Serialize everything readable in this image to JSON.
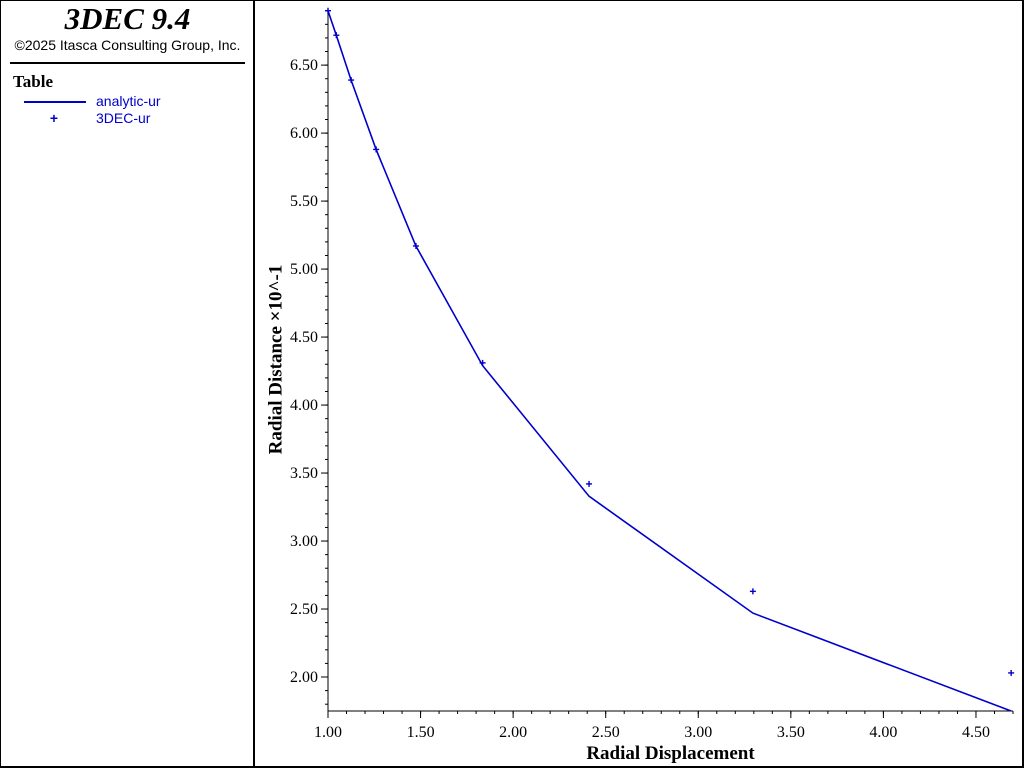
{
  "app": {
    "title": "3DEC 9.4",
    "copyright": "©2025 Itasca Consulting Group, Inc."
  },
  "legend": {
    "heading": "Table",
    "items": [
      {
        "label": "analytic-ur",
        "kind": "line",
        "color": "#0000CC"
      },
      {
        "label": "3DEC-ur",
        "kind": "marker",
        "color": "#0000CC"
      }
    ]
  },
  "chart_data": {
    "type": "line",
    "xlabel": "Radial Displacement",
    "ylabel": "Radial Distance ×10^-1",
    "xlim": [
      1.0,
      4.7
    ],
    "ylim": [
      1.75,
      6.92
    ],
    "x_ticks": [
      1.0,
      1.5,
      2.0,
      2.5,
      3.0,
      3.5,
      4.0,
      4.5
    ],
    "x_tick_labels": [
      "1.00",
      "1.50",
      "2.00",
      "2.50",
      "3.00",
      "3.50",
      "4.00",
      "4.50"
    ],
    "y_ticks": [
      2.0,
      2.5,
      3.0,
      3.5,
      4.0,
      4.5,
      5.0,
      5.5,
      6.0,
      6.5
    ],
    "y_tick_labels": [
      "2.00",
      "2.50",
      "3.00",
      "3.50",
      "4.00",
      "4.50",
      "5.00",
      "5.50",
      "6.00",
      "6.50"
    ],
    "x_minor_step": 0.1,
    "y_minor_step": 0.1,
    "grid": false,
    "legend_position": "left-panel",
    "series": [
      {
        "name": "analytic-ur",
        "style": "line",
        "color": "#0000CC",
        "points": [
          [
            1.0,
            6.9
          ],
          [
            1.045,
            6.72
          ],
          [
            1.125,
            6.39
          ],
          [
            1.26,
            5.88
          ],
          [
            1.475,
            5.17
          ],
          [
            1.835,
            4.29
          ],
          [
            2.41,
            3.33
          ],
          [
            3.295,
            2.47
          ],
          [
            4.69,
            1.75
          ]
        ]
      },
      {
        "name": "3DEC-ur",
        "style": "marker",
        "color": "#0000CC",
        "points": [
          [
            1.0,
            6.9
          ],
          [
            1.045,
            6.72
          ],
          [
            1.125,
            6.39
          ],
          [
            1.26,
            5.88
          ],
          [
            1.475,
            5.17
          ],
          [
            1.835,
            4.31
          ],
          [
            2.41,
            3.42
          ],
          [
            3.295,
            2.63
          ],
          [
            4.69,
            2.03
          ]
        ]
      }
    ]
  }
}
